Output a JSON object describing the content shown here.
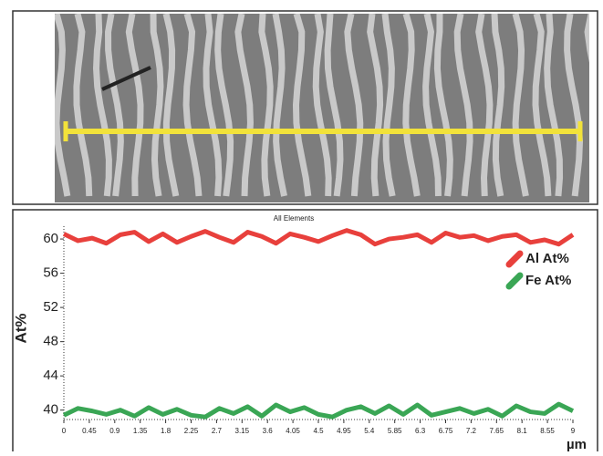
{
  "chart_data": {
    "type": "line",
    "title": "All Elements",
    "x_label": "µm",
    "y_label": "At%",
    "x": [
      0,
      0.25,
      0.5,
      0.75,
      1,
      1.25,
      1.5,
      1.75,
      2,
      2.25,
      2.5,
      2.75,
      3,
      3.25,
      3.5,
      3.75,
      4,
      4.25,
      4.5,
      4.75,
      5,
      5.25,
      5.5,
      5.75,
      6,
      6.25,
      6.5,
      6.75,
      7,
      7.25,
      7.5,
      7.75,
      8,
      8.25,
      8.5,
      8.75,
      9
    ],
    "series": [
      {
        "name": "Al At%",
        "color": "#e8403c",
        "values": [
          60.6,
          59.8,
          60.1,
          59.5,
          60.5,
          60.8,
          59.7,
          60.6,
          59.6,
          60.3,
          60.9,
          60.2,
          59.6,
          60.8,
          60.3,
          59.5,
          60.6,
          60.2,
          59.7,
          60.4,
          61.0,
          60.5,
          59.4,
          60.0,
          60.2,
          60.5,
          59.6,
          60.7,
          60.2,
          60.4,
          59.8,
          60.3,
          60.5,
          59.6,
          59.9,
          59.4,
          60.5
        ]
      },
      {
        "name": "Fe At%",
        "color": "#3aa655",
        "values": [
          39.4,
          40.2,
          39.9,
          39.5,
          40.0,
          39.3,
          40.3,
          39.5,
          40.1,
          39.4,
          39.2,
          40.2,
          39.6,
          40.4,
          39.3,
          40.6,
          39.8,
          40.3,
          39.5,
          39.2,
          40.0,
          40.4,
          39.6,
          40.5,
          39.5,
          40.6,
          39.4,
          39.8,
          40.2,
          39.6,
          40.1,
          39.3,
          40.5,
          39.8,
          39.6,
          40.7,
          39.9
        ]
      }
    ],
    "xlim": [
      0,
      9
    ],
    "ylim": [
      38.9,
      61.5
    ],
    "xticks": [
      0,
      0.45,
      0.9,
      1.35,
      1.8,
      2.25,
      2.7,
      3.15,
      3.6,
      4.05,
      4.5,
      4.95,
      5.4,
      5.85,
      6.3,
      6.75,
      7.2,
      7.65,
      8.1,
      8.55,
      9
    ],
    "yticks": [
      40,
      44,
      48,
      52,
      56,
      60
    ],
    "legend": "upper right"
  }
}
